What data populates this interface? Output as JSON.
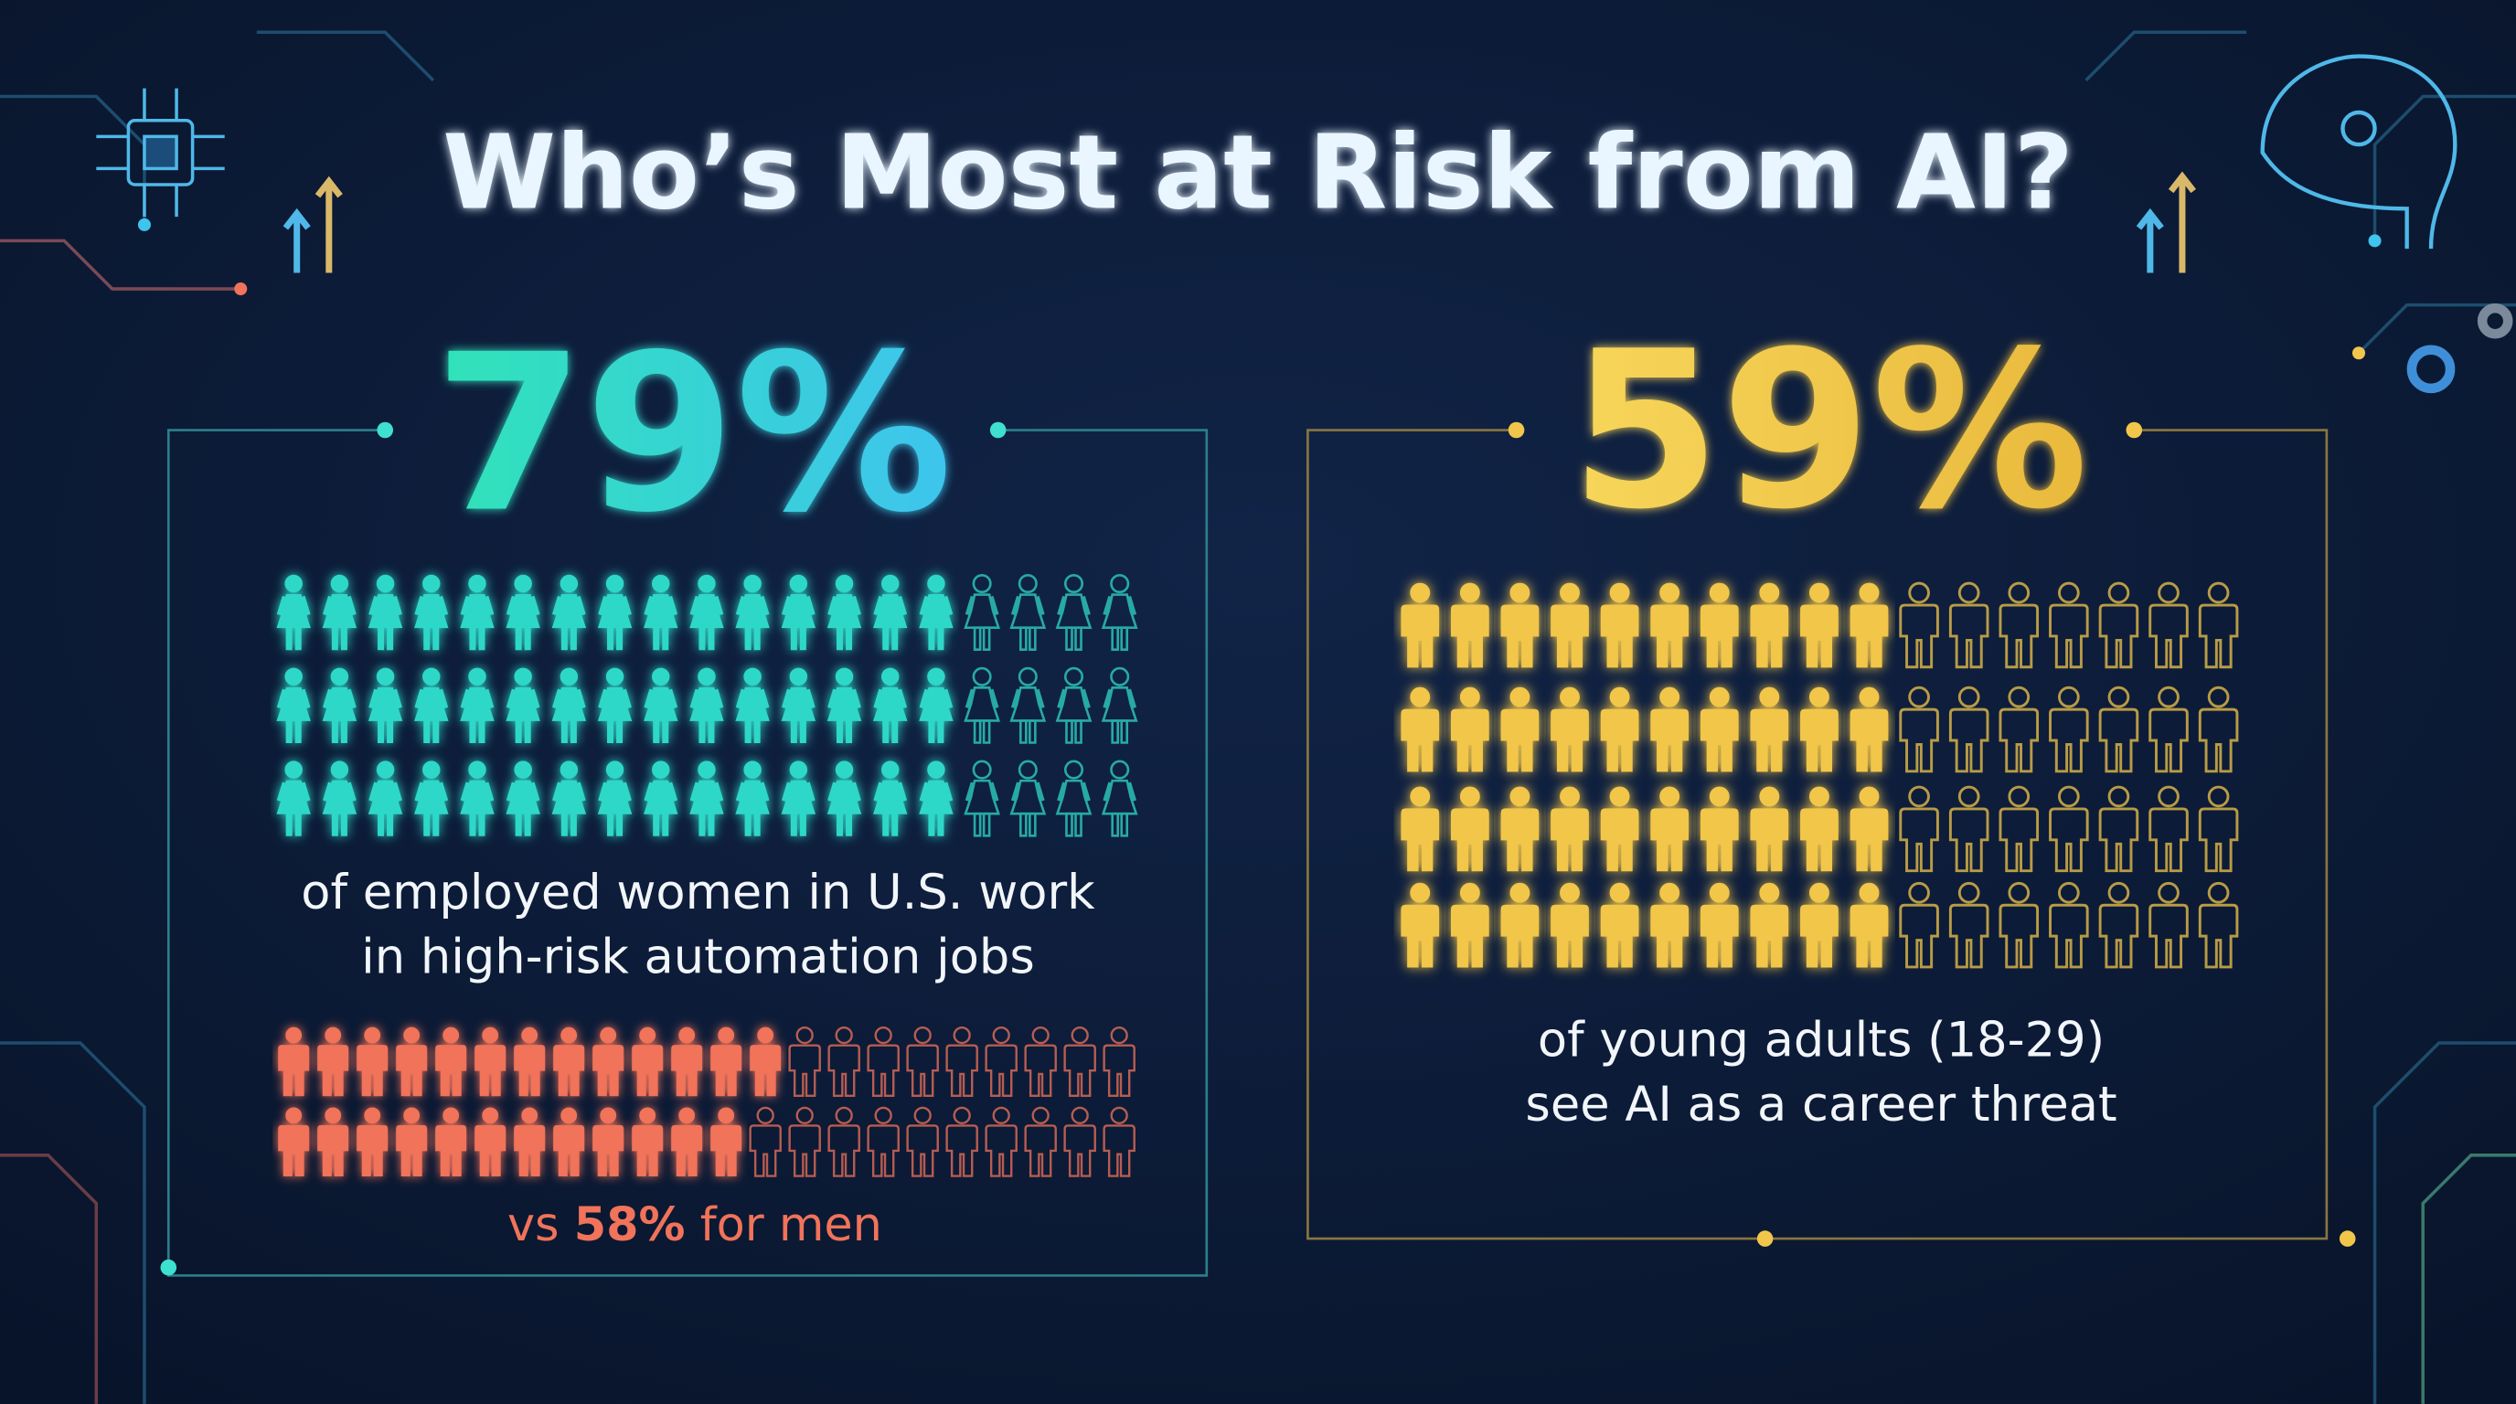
{
  "title": "Who’s Most at Risk from AI?",
  "women": {
    "percent": {
      "value": 79,
      "label": "79%"
    },
    "caption": [
      "of employed women in U.S. work",
      "in high-risk automation jobs"
    ]
  },
  "men": {
    "percent": {
      "value": 58,
      "label": "58%"
    },
    "caption_before": "vs",
    "caption_after": "for men"
  },
  "young_adults": {
    "percent": {
      "value": 59,
      "label": "59%"
    },
    "caption": [
      "of young adults (18-29)",
      "see AI as a career threat"
    ]
  }
}
